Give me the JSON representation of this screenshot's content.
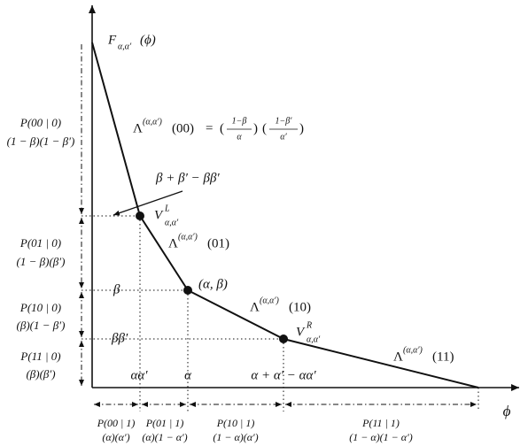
{
  "curve_label": {
    "base": "F",
    "sub": "α,α′",
    "arg": "(ϕ)"
  },
  "x_axis_label": "ϕ",
  "segments": [
    {
      "base": "Λ",
      "sup": "(α,α′)",
      "arg": "(00)"
    },
    {
      "base": "Λ",
      "sup": "(α,α′)",
      "arg": "(01)"
    },
    {
      "base": "Λ",
      "sup": "(α,α′)",
      "arg": "(10)"
    },
    {
      "base": "Λ",
      "sup": "(α,α′)",
      "arg": "(11)"
    }
  ],
  "formula": {
    "eq": "=",
    "fractions": [
      {
        "num": "1−β",
        "den": "α"
      },
      {
        "num": "1−β′",
        "den": "α′"
      }
    ]
  },
  "points": [
    {
      "base": "V",
      "sup": "L",
      "sub": "α,α′"
    },
    {
      "label": "(α, β)"
    },
    {
      "base": "V",
      "sup": "R",
      "sub": "α,α′"
    }
  ],
  "annotation": "β + β′ − ββ′",
  "y_labels": [
    "β",
    "ββ′"
  ],
  "x_labels": [
    "αα′",
    "α",
    "α + α′ − αα′"
  ],
  "left_intervals": [
    {
      "prob": "P(00 | 0)",
      "expr": "(1 − β)(1 − β′)"
    },
    {
      "prob": "P(01 | 0)",
      "expr": "(1 − β)(β′)"
    },
    {
      "prob": "P(10 | 0)",
      "expr": "(β)(1 − β′)"
    },
    {
      "prob": "P(11 | 0)",
      "expr": "(β)(β′)"
    }
  ],
  "bottom_intervals": [
    {
      "prob": "P(00 | 1)",
      "expr": "(α)(α′)"
    },
    {
      "prob": "P(01 | 1)",
      "expr": "(α)(1 − α′)"
    },
    {
      "prob": "P(10 | 1)",
      "expr": "(1 − α)(α′)"
    },
    {
      "prob": "P(11 | 1)",
      "expr": "(1 − α)(1 − α′)"
    }
  ]
}
